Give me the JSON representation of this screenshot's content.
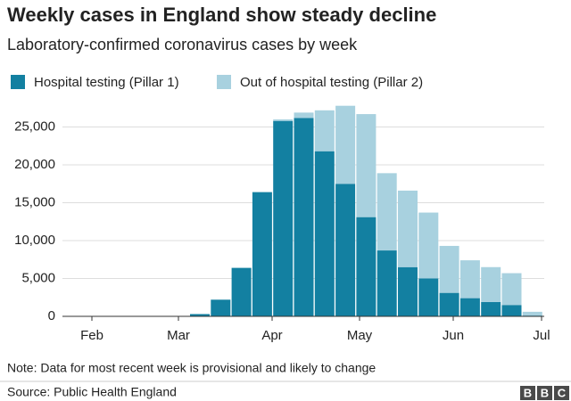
{
  "chart_data": {
    "type": "stacked_bar",
    "title": "Weekly cases in England show steady decline",
    "subtitle": "Laboratory-confirmed coronavirus cases by week",
    "categories": [
      null,
      null,
      null,
      null,
      null,
      null,
      null,
      null,
      null,
      null,
      null,
      null,
      null,
      null,
      null,
      null,
      null
    ],
    "series": [
      {
        "name": "Hospital testing (Pillar 1)",
        "color": "#1380a1",
        "values": [
          300,
          2200,
          6400,
          16400,
          25800,
          26200,
          21800,
          17500,
          13100,
          8700,
          6500,
          5000,
          3100,
          2400,
          1900,
          1500,
          100
        ]
      },
      {
        "name": "Out of hospital testing (Pillar 2)",
        "color": "#a8d1df",
        "values": [
          0,
          0,
          0,
          0,
          200,
          700,
          5400,
          10300,
          13600,
          10200,
          10100,
          8700,
          6200,
          5000,
          4600,
          4200,
          500
        ]
      }
    ],
    "xticks": [
      "Feb",
      "Mar",
      "Apr",
      "May",
      "Jun",
      "Jul"
    ],
    "ylim": [
      0,
      30000
    ],
    "yticks": [
      0,
      {
        "value": 5000,
        "label": "5,000"
      },
      {
        "value": 10000,
        "label": "10,000"
      },
      {
        "value": 15000,
        "label": "15,000"
      },
      {
        "value": 20000,
        "label": "20,000"
      },
      {
        "value": 25000,
        "label": "25,000"
      }
    ],
    "grid": true,
    "note": "Note: Data for most recent week is provisional and likely to change",
    "source": "Source: Public Health England",
    "logo": [
      "B",
      "B",
      "C"
    ]
  }
}
